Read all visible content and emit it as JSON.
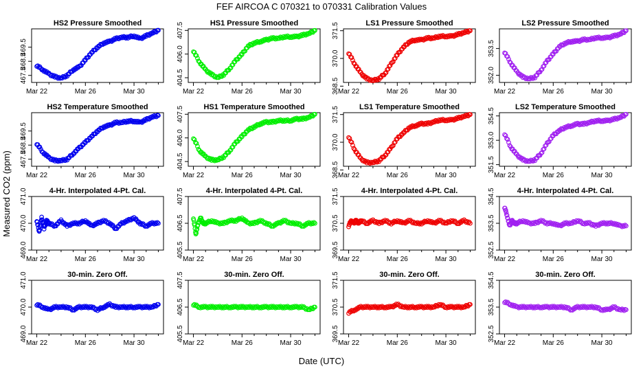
{
  "figure": {
    "title": "FEF   AIRCOA C   070321 to 070331   Calibration Values",
    "xlabel": "Date (UTC)",
    "ylabel": "Measured CO2 (ppm)"
  },
  "colors": {
    "HS2": "#0000ee",
    "HS1": "#00ee00",
    "LS1": "#ee0000",
    "LS2": "#a020f0"
  },
  "chart_data": [
    {
      "type": "scatter",
      "title": "HS2 Pressure Smoothed",
      "series": "HS2",
      "ylim": [
        467.0,
        470.8
      ],
      "yticks": [
        "467.5",
        "468.5",
        "469.5"
      ],
      "xticks": [
        "Mar 22",
        "Mar 26",
        "Mar 30"
      ],
      "xlim": [
        21.8,
        32.2
      ],
      "x": [
        22.0,
        22.5,
        23.0,
        23.5,
        24.0,
        24.5,
        25.0,
        25.5,
        26.0,
        26.5,
        27.0,
        27.5,
        28.0,
        28.5,
        29.0,
        29.5,
        30.0,
        30.5,
        31.0,
        31.5,
        32.0
      ],
      "y": [
        468.2,
        467.9,
        467.6,
        467.4,
        467.3,
        467.5,
        467.9,
        468.1,
        468.6,
        469.1,
        469.5,
        469.8,
        469.9,
        470.1,
        470.2,
        470.2,
        470.3,
        470.1,
        470.3,
        470.5,
        470.7
      ]
    },
    {
      "type": "scatter",
      "title": "HS1 Pressure Smoothed",
      "series": "HS1",
      "ylim": [
        404.2,
        407.6
      ],
      "yticks": [
        "404.5",
        "406.0",
        "407.5"
      ],
      "xticks": [
        "Mar 22",
        "Mar 26",
        "Mar 30"
      ],
      "xlim": [
        21.8,
        32.2
      ],
      "x": [
        22.0,
        22.5,
        23.0,
        23.5,
        24.0,
        24.5,
        25.0,
        25.5,
        26.0,
        26.5,
        27.0,
        27.5,
        28.0,
        28.5,
        29.0,
        29.5,
        30.0,
        30.5,
        31.0,
        31.5,
        32.0
      ],
      "y": [
        406.2,
        405.5,
        405.0,
        404.7,
        404.5,
        404.7,
        405.1,
        405.6,
        406.0,
        406.5,
        406.7,
        406.8,
        406.9,
        407.0,
        407.0,
        407.1,
        407.1,
        407.1,
        407.2,
        407.3,
        407.5
      ]
    },
    {
      "type": "scatter",
      "title": "LS1 Pressure Smoothed",
      "series": "LS1",
      "ylim": [
        368.7,
        371.6
      ],
      "yticks": [
        "368.5",
        "370.0",
        "371.5"
      ],
      "xticks": [
        "Mar 22",
        "Mar 26",
        "Mar 30"
      ],
      "xlim": [
        21.8,
        32.2
      ],
      "x": [
        22.0,
        22.5,
        23.0,
        23.5,
        24.0,
        24.5,
        25.0,
        25.5,
        26.0,
        26.5,
        27.0,
        27.5,
        28.0,
        28.5,
        29.0,
        29.5,
        30.0,
        30.5,
        31.0,
        31.5,
        32.0
      ],
      "y": [
        370.3,
        369.7,
        369.2,
        368.9,
        368.8,
        368.9,
        369.2,
        369.7,
        370.2,
        370.6,
        370.9,
        371.0,
        371.0,
        371.1,
        371.1,
        371.2,
        371.2,
        371.2,
        371.3,
        371.4,
        371.5
      ]
    },
    {
      "type": "scatter",
      "title": "LS2 Pressure Smoothed",
      "series": "LS2",
      "ylim": [
        351.6,
        354.6
      ],
      "yticks": [
        "352.0",
        "353.5"
      ],
      "xticks": [
        "Mar 22",
        "Mar 26",
        "Mar 30"
      ],
      "xlim": [
        21.8,
        32.2
      ],
      "x": [
        22.0,
        22.5,
        23.0,
        23.5,
        24.0,
        24.5,
        25.0,
        25.5,
        26.0,
        26.5,
        27.0,
        27.5,
        28.0,
        28.5,
        29.0,
        29.5,
        30.0,
        30.5,
        31.0,
        31.5,
        32.0
      ],
      "y": [
        353.3,
        352.7,
        352.2,
        351.9,
        351.8,
        351.9,
        352.3,
        352.8,
        353.2,
        353.6,
        353.8,
        353.9,
        353.9,
        354.0,
        354.0,
        354.1,
        354.1,
        354.1,
        354.2,
        354.3,
        354.5
      ]
    },
    {
      "type": "scatter",
      "title": "HS2 Temperature Smoothed",
      "series": "HS2",
      "ylim": [
        467.0,
        470.8
      ],
      "yticks": [
        "467.5",
        "468.5",
        "469.5"
      ],
      "xticks": [
        "Mar 22",
        "Mar 26",
        "Mar 30"
      ],
      "xlim": [
        21.8,
        32.2
      ],
      "x": [
        22.0,
        22.5,
        23.0,
        23.5,
        24.0,
        24.5,
        25.0,
        25.5,
        26.0,
        26.5,
        27.0,
        27.5,
        28.0,
        28.5,
        29.0,
        29.5,
        30.0,
        30.5,
        31.0,
        31.5,
        32.0
      ],
      "y": [
        468.6,
        468.0,
        467.6,
        467.4,
        467.4,
        467.5,
        467.9,
        468.3,
        468.7,
        469.1,
        469.5,
        469.8,
        469.9,
        470.1,
        470.1,
        470.2,
        470.2,
        470.1,
        470.3,
        470.5,
        470.6
      ]
    },
    {
      "type": "scatter",
      "title": "HS1 Temperature Smoothed",
      "series": "HS1",
      "ylim": [
        404.2,
        407.6
      ],
      "yticks": [
        "404.5",
        "406.0",
        "407.5"
      ],
      "xticks": [
        "Mar 22",
        "Mar 26",
        "Mar 30"
      ],
      "xlim": [
        21.8,
        32.2
      ],
      "x": [
        22.0,
        22.5,
        23.0,
        23.5,
        24.0,
        24.5,
        25.0,
        25.5,
        26.0,
        26.5,
        27.0,
        27.5,
        28.0,
        28.5,
        29.0,
        29.5,
        30.0,
        30.5,
        31.0,
        31.5,
        32.0
      ],
      "y": [
        406.0,
        405.2,
        404.8,
        404.6,
        404.6,
        404.8,
        405.2,
        405.7,
        406.1,
        406.5,
        406.7,
        406.9,
        407.0,
        407.0,
        407.1,
        407.1,
        407.1,
        407.2,
        407.2,
        407.3,
        407.5
      ]
    },
    {
      "type": "scatter",
      "title": "LS1 Temperature Smoothed",
      "series": "LS1",
      "ylim": [
        368.7,
        371.6
      ],
      "yticks": [
        "368.5",
        "370.0",
        "371.5"
      ],
      "xticks": [
        "Mar 22",
        "Mar 26",
        "Mar 30"
      ],
      "xlim": [
        21.8,
        32.2
      ],
      "x": [
        22.0,
        22.5,
        23.0,
        23.5,
        24.0,
        24.5,
        25.0,
        25.5,
        26.0,
        26.5,
        27.0,
        27.5,
        28.0,
        28.5,
        29.0,
        29.5,
        30.0,
        30.5,
        31.0,
        31.5,
        32.0
      ],
      "y": [
        370.3,
        369.6,
        369.1,
        368.9,
        368.9,
        369.0,
        369.3,
        369.7,
        370.2,
        370.5,
        370.8,
        370.9,
        371.0,
        371.0,
        371.1,
        371.2,
        371.2,
        371.2,
        371.3,
        371.4,
        371.5
      ]
    },
    {
      "type": "scatter",
      "title": "LS2 Temperature Smoothed",
      "series": "LS2",
      "ylim": [
        351.4,
        354.7
      ],
      "yticks": [
        "351.5",
        "353.0",
        "354.5"
      ],
      "xticks": [
        "Mar 22",
        "Mar 26",
        "Mar 30"
      ],
      "xlim": [
        21.8,
        32.2
      ],
      "x": [
        22.0,
        22.5,
        23.0,
        23.5,
        24.0,
        24.5,
        25.0,
        25.5,
        26.0,
        26.5,
        27.0,
        27.5,
        28.0,
        28.5,
        29.0,
        29.5,
        30.0,
        30.5,
        31.0,
        31.5,
        32.0
      ],
      "y": [
        353.4,
        352.6,
        352.1,
        351.8,
        351.7,
        351.8,
        352.2,
        352.8,
        353.3,
        353.6,
        353.8,
        353.9,
        354.0,
        354.0,
        354.1,
        354.2,
        354.2,
        354.2,
        354.3,
        354.4,
        354.6
      ]
    },
    {
      "type": "scatter",
      "title": "4-Hr. Interpolated 4-Pt. Cal.",
      "series": "HS2",
      "ylim": [
        469.0,
        471.0
      ],
      "yticks": [
        "469.0",
        "470.0",
        "471.0"
      ],
      "xticks": [
        "Mar 22",
        "Mar 26",
        "Mar 30"
      ],
      "xlim": [
        21.8,
        32.2
      ],
      "x": [
        22.0,
        22.2,
        22.4,
        22.6,
        22.8,
        23.0,
        23.5,
        24.0,
        24.5,
        25.0,
        25.5,
        26.0,
        26.5,
        27.0,
        27.5,
        28.0,
        28.5,
        29.0,
        29.5,
        30.0,
        30.5,
        31.0,
        31.5,
        32.0
      ],
      "y": [
        470.1,
        469.7,
        470.2,
        469.8,
        470.1,
        470.0,
        469.9,
        470.1,
        469.9,
        470.0,
        470.0,
        470.1,
        469.9,
        470.0,
        470.1,
        470.0,
        469.8,
        470.0,
        470.1,
        470.2,
        470.0,
        469.9,
        470.0,
        470.0
      ]
    },
    {
      "type": "scatter",
      "title": "4-Hr. Interpolated 4-Pt. Cal.",
      "series": "HS1",
      "ylim": [
        405.5,
        407.5
      ],
      "yticks": [
        "405.5",
        "406.5",
        "407.5"
      ],
      "xticks": [
        "Mar 22",
        "Mar 26",
        "Mar 30"
      ],
      "xlim": [
        21.8,
        32.2
      ],
      "x": [
        22.0,
        22.2,
        22.4,
        22.6,
        22.8,
        23.0,
        23.5,
        24.0,
        24.5,
        25.0,
        25.5,
        26.0,
        26.5,
        27.0,
        27.5,
        28.0,
        28.5,
        29.0,
        29.5,
        30.0,
        30.5,
        31.0,
        31.5,
        32.0
      ],
      "y": [
        406.7,
        406.1,
        406.5,
        406.7,
        406.5,
        406.5,
        406.6,
        406.5,
        406.5,
        406.6,
        406.6,
        406.7,
        406.5,
        406.5,
        406.6,
        406.5,
        406.4,
        406.5,
        406.6,
        406.5,
        406.5,
        406.4,
        406.5,
        406.5
      ]
    },
    {
      "type": "scatter",
      "title": "4-Hr. Interpolated 4-Pt. Cal.",
      "series": "LS1",
      "ylim": [
        369.5,
        371.5
      ],
      "yticks": [
        "369.5",
        "370.5",
        "371.5"
      ],
      "xticks": [
        "Mar 22",
        "Mar 26",
        "Mar 30"
      ],
      "xlim": [
        21.8,
        32.2
      ],
      "x": [
        22.0,
        22.2,
        22.4,
        22.6,
        22.8,
        23.0,
        23.5,
        24.0,
        24.5,
        25.0,
        25.5,
        26.0,
        26.5,
        27.0,
        27.5,
        28.0,
        28.5,
        29.0,
        29.5,
        30.0,
        30.5,
        31.0,
        31.5,
        32.0
      ],
      "y": [
        370.4,
        370.6,
        370.5,
        370.6,
        370.5,
        370.6,
        370.5,
        370.6,
        370.5,
        370.6,
        370.5,
        370.6,
        370.5,
        370.6,
        370.5,
        370.5,
        370.6,
        370.5,
        370.6,
        370.5,
        370.6,
        370.5,
        370.6,
        370.5
      ]
    },
    {
      "type": "scatter",
      "title": "4-Hr. Interpolated 4-Pt. Cal.",
      "series": "LS2",
      "ylim": [
        352.5,
        354.5
      ],
      "yticks": [
        "352.5",
        "353.5",
        "354.5"
      ],
      "xticks": [
        "Mar 22",
        "Mar 26",
        "Mar 30"
      ],
      "xlim": [
        21.8,
        32.2
      ],
      "x": [
        22.0,
        22.2,
        22.4,
        22.6,
        22.8,
        23.0,
        23.5,
        24.0,
        24.5,
        25.0,
        25.5,
        26.0,
        26.5,
        27.0,
        27.5,
        28.0,
        28.5,
        29.0,
        29.5,
        30.0,
        30.5,
        31.0,
        31.5,
        32.0
      ],
      "y": [
        354.1,
        353.8,
        353.4,
        353.6,
        353.5,
        353.5,
        353.6,
        353.5,
        353.5,
        353.6,
        353.5,
        353.5,
        353.4,
        353.5,
        353.5,
        353.6,
        353.5,
        353.5,
        353.4,
        353.5,
        353.5,
        353.5,
        353.4,
        353.4
      ]
    },
    {
      "type": "scatter",
      "title": "30-min. Zero Off.",
      "series": "HS2",
      "ylim": [
        469.0,
        471.0
      ],
      "yticks": [
        "469.0",
        "470.0",
        "471.0"
      ],
      "xticks": [
        "Mar 22",
        "Mar 26",
        "Mar 30"
      ],
      "xlim": [
        21.8,
        32.2
      ],
      "x": [
        22.0,
        22.5,
        23.0,
        23.5,
        24.0,
        24.5,
        25.0,
        25.5,
        26.0,
        26.5,
        27.0,
        27.5,
        28.0,
        28.5,
        29.0,
        29.5,
        30.0,
        30.5,
        31.0,
        31.5,
        32.0
      ],
      "y": [
        470.1,
        470.0,
        469.9,
        470.0,
        470.0,
        470.0,
        469.9,
        470.0,
        470.0,
        470.0,
        469.9,
        470.0,
        470.1,
        470.0,
        470.0,
        470.0,
        470.0,
        470.0,
        470.0,
        470.0,
        470.1
      ]
    },
    {
      "type": "scatter",
      "title": "30-min. Zero Off.",
      "series": "HS1",
      "ylim": [
        405.5,
        407.5
      ],
      "yticks": [
        "405.5",
        "406.5",
        "407.5"
      ],
      "xticks": [
        "Mar 22",
        "Mar 26",
        "Mar 30"
      ],
      "xlim": [
        21.8,
        32.2
      ],
      "x": [
        22.0,
        22.5,
        23.0,
        23.5,
        24.0,
        24.5,
        25.0,
        25.5,
        26.0,
        26.5,
        27.0,
        27.5,
        28.0,
        28.5,
        29.0,
        29.5,
        30.0,
        30.5,
        31.0,
        31.5,
        32.0
      ],
      "y": [
        406.6,
        406.5,
        406.5,
        406.5,
        406.5,
        406.5,
        406.5,
        406.5,
        406.5,
        406.5,
        406.5,
        406.5,
        406.5,
        406.5,
        406.5,
        406.5,
        406.5,
        406.5,
        406.5,
        406.4,
        406.5
      ]
    },
    {
      "type": "scatter",
      "title": "30-min. Zero Off.",
      "series": "LS1",
      "ylim": [
        369.5,
        371.5
      ],
      "yticks": [
        "369.5",
        "370.5",
        "371.5"
      ],
      "xticks": [
        "Mar 22",
        "Mar 26",
        "Mar 30"
      ],
      "xlim": [
        21.8,
        32.2
      ],
      "x": [
        22.0,
        22.5,
        23.0,
        23.5,
        24.0,
        24.5,
        25.0,
        25.5,
        26.0,
        26.5,
        27.0,
        27.5,
        28.0,
        28.5,
        29.0,
        29.5,
        30.0,
        30.5,
        31.0,
        31.5,
        32.0
      ],
      "y": [
        370.3,
        370.4,
        370.5,
        370.5,
        370.5,
        370.5,
        370.5,
        370.5,
        370.6,
        370.5,
        370.5,
        370.5,
        370.5,
        370.5,
        370.5,
        370.6,
        370.5,
        370.5,
        370.5,
        370.5,
        370.6
      ]
    },
    {
      "type": "scatter",
      "title": "30-min. Zero Off.",
      "series": "LS2",
      "ylim": [
        352.5,
        354.5
      ],
      "yticks": [
        "352.5",
        "353.5",
        "354.5"
      ],
      "xticks": [
        "Mar 22",
        "Mar 26",
        "Mar 30"
      ],
      "xlim": [
        21.8,
        32.2
      ],
      "x": [
        22.0,
        22.5,
        23.0,
        23.5,
        24.0,
        24.5,
        25.0,
        25.5,
        26.0,
        26.5,
        27.0,
        27.5,
        28.0,
        28.5,
        29.0,
        29.5,
        30.0,
        30.5,
        31.0,
        31.5,
        32.0
      ],
      "y": [
        353.7,
        353.6,
        353.5,
        353.5,
        353.5,
        353.5,
        353.5,
        353.5,
        353.5,
        353.5,
        353.5,
        353.4,
        353.5,
        353.5,
        353.5,
        353.5,
        353.4,
        353.4,
        353.5,
        353.4,
        353.4
      ]
    }
  ]
}
